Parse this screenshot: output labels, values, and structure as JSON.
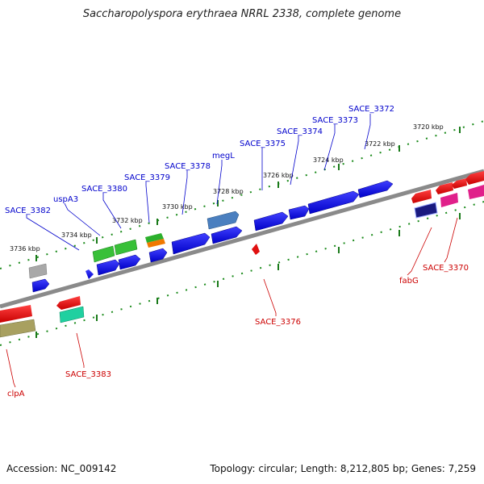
{
  "title": "Saccharopolyspora erythraea NRRL 2338, complete genome",
  "footer": {
    "accession": "Accession: NC_009142",
    "summary": "Topology: circular; Length: 8,212,805 bp; Genes: 7,259"
  },
  "ticks": [
    "3720 kbp",
    "3722 kbp",
    "3724 kbp",
    "3726 kbp",
    "3728 kbp",
    "3730 kbp",
    "3732 kbp",
    "3734 kbp",
    "3736 kbp"
  ],
  "forward_labels": [
    "SACE_3372",
    "SACE_3373",
    "SACE_3374",
    "SACE_3375",
    "megL",
    "SACE_3378",
    "SACE_3379",
    "SACE_3380",
    "uspA3",
    "SACE_3382"
  ],
  "reverse_labels": [
    "SACE_3370",
    "fabG",
    "SACE_3376",
    "SACE_3383",
    "clpA"
  ],
  "colors": {
    "forward_label": "#0000cc",
    "reverse_label": "#cc0000",
    "gene_blue": "#0a0adc",
    "gene_red": "#e01010",
    "tick_green": "#1a7a1a",
    "backbone": "#888888"
  }
}
